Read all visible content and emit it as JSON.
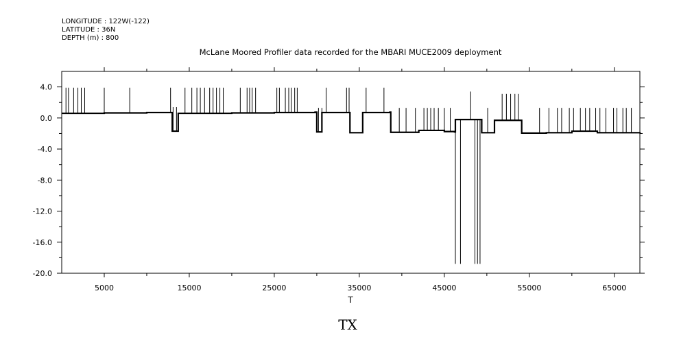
{
  "header": {
    "longitude": "LONGITUDE : 122W(-122)",
    "latitude": "LATITUDE : 36N",
    "depth": "DEPTH (m) : 800"
  },
  "figure_label": "TX",
  "chart_data": {
    "type": "line",
    "title": "McLane Moored Profiler data recorded for the MBARI MUCE2009 deployment",
    "xlabel": "T",
    "ylabel": "",
    "xlim": [
      0,
      68000
    ],
    "ylim": [
      -20,
      6
    ],
    "grid": false,
    "x_ticks": [
      5000,
      15000,
      25000,
      35000,
      45000,
      55000,
      65000
    ],
    "x_tick_labels": [
      "5000",
      "15000",
      "25000",
      "35000",
      "45000",
      "55000",
      "65000"
    ],
    "y_ticks": [
      4,
      0,
      -4,
      -8,
      -12,
      -16,
      -20
    ],
    "y_tick_labels": [
      "4.0",
      "0.0",
      "-4.0",
      "-8.0",
      "-12.0",
      "-16.0",
      "-20.0"
    ],
    "series": [
      {
        "color": "#000000",
        "values_xy": [
          [
            0,
            0.6
          ],
          [
            5000,
            0.65
          ],
          [
            10000,
            0.7
          ],
          [
            12900,
            0.7
          ],
          [
            13000,
            -1.7
          ],
          [
            13600,
            -1.7
          ],
          [
            13700,
            0.6
          ],
          [
            20000,
            0.65
          ],
          [
            25000,
            0.7
          ],
          [
            29800,
            0.75
          ],
          [
            30000,
            -1.8
          ],
          [
            30500,
            -1.8
          ],
          [
            30600,
            0.7
          ],
          [
            33800,
            0.7
          ],
          [
            33900,
            -1.9
          ],
          [
            35300,
            -1.9
          ],
          [
            35400,
            0.7
          ],
          [
            38600,
            0.75
          ],
          [
            38700,
            -1.85
          ],
          [
            42000,
            -1.6
          ],
          [
            45000,
            -1.75
          ],
          [
            46200,
            -1.8
          ],
          [
            46300,
            -0.2
          ],
          [
            49300,
            -0.2
          ],
          [
            49400,
            -1.9
          ],
          [
            50800,
            -1.9
          ],
          [
            50900,
            -0.3
          ],
          [
            54000,
            -0.3
          ],
          [
            54100,
            -1.95
          ],
          [
            57000,
            -1.9
          ],
          [
            60000,
            -1.7
          ],
          [
            63000,
            -1.9
          ],
          [
            68000,
            -2.0
          ]
        ]
      }
    ],
    "spikes": [
      [
        500,
        3.9
      ],
      [
        800,
        3.9
      ],
      [
        1400,
        3.9
      ],
      [
        1900,
        3.9
      ],
      [
        2300,
        3.9
      ],
      [
        2700,
        3.9
      ],
      [
        5000,
        3.9
      ],
      [
        8000,
        3.9
      ],
      [
        13100,
        1.4
      ],
      [
        13500,
        1.4
      ],
      [
        12800,
        3.9
      ],
      [
        14500,
        3.9
      ],
      [
        15300,
        3.9
      ],
      [
        15900,
        3.9
      ],
      [
        16300,
        3.9
      ],
      [
        16800,
        3.9
      ],
      [
        17400,
        3.9
      ],
      [
        17800,
        3.9
      ],
      [
        18200,
        3.9
      ],
      [
        18600,
        3.9
      ],
      [
        19000,
        3.9
      ],
      [
        21000,
        3.9
      ],
      [
        21800,
        3.9
      ],
      [
        22100,
        3.9
      ],
      [
        22400,
        3.9
      ],
      [
        22800,
        3.9
      ],
      [
        25300,
        3.9
      ],
      [
        25600,
        3.9
      ],
      [
        26300,
        3.9
      ],
      [
        26700,
        3.9
      ],
      [
        27000,
        3.9
      ],
      [
        27400,
        3.9
      ],
      [
        27700,
        3.9
      ],
      [
        30200,
        1.3
      ],
      [
        30600,
        1.3
      ],
      [
        31100,
        3.9
      ],
      [
        33500,
        3.9
      ],
      [
        33800,
        3.9
      ],
      [
        35800,
        3.9
      ],
      [
        37900,
        3.9
      ],
      [
        39700,
        1.3
      ],
      [
        40500,
        1.3
      ],
      [
        41600,
        1.3
      ],
      [
        42600,
        1.3
      ],
      [
        43000,
        1.3
      ],
      [
        43400,
        1.3
      ],
      [
        43800,
        1.3
      ],
      [
        44300,
        1.3
      ],
      [
        45000,
        1.3
      ],
      [
        45700,
        1.3
      ],
      [
        46300,
        -18.8
      ],
      [
        46900,
        -18.8
      ],
      [
        48100,
        3.4
      ],
      [
        48600,
        -18.8
      ],
      [
        48900,
        -18.8
      ],
      [
        49200,
        -18.8
      ],
      [
        50100,
        1.3
      ],
      [
        51800,
        3.1
      ],
      [
        52300,
        3.1
      ],
      [
        52800,
        3.1
      ],
      [
        53300,
        3.1
      ],
      [
        53700,
        3.1
      ],
      [
        56200,
        1.3
      ],
      [
        57300,
        1.3
      ],
      [
        58300,
        1.3
      ],
      [
        58800,
        1.3
      ],
      [
        59700,
        1.3
      ],
      [
        60200,
        1.3
      ],
      [
        61000,
        1.3
      ],
      [
        61600,
        1.3
      ],
      [
        62100,
        1.3
      ],
      [
        62800,
        1.3
      ],
      [
        63300,
        1.3
      ],
      [
        64000,
        1.3
      ],
      [
        64900,
        1.3
      ],
      [
        65300,
        1.3
      ],
      [
        66000,
        1.3
      ],
      [
        66400,
        1.3
      ],
      [
        67000,
        1.3
      ]
    ]
  }
}
